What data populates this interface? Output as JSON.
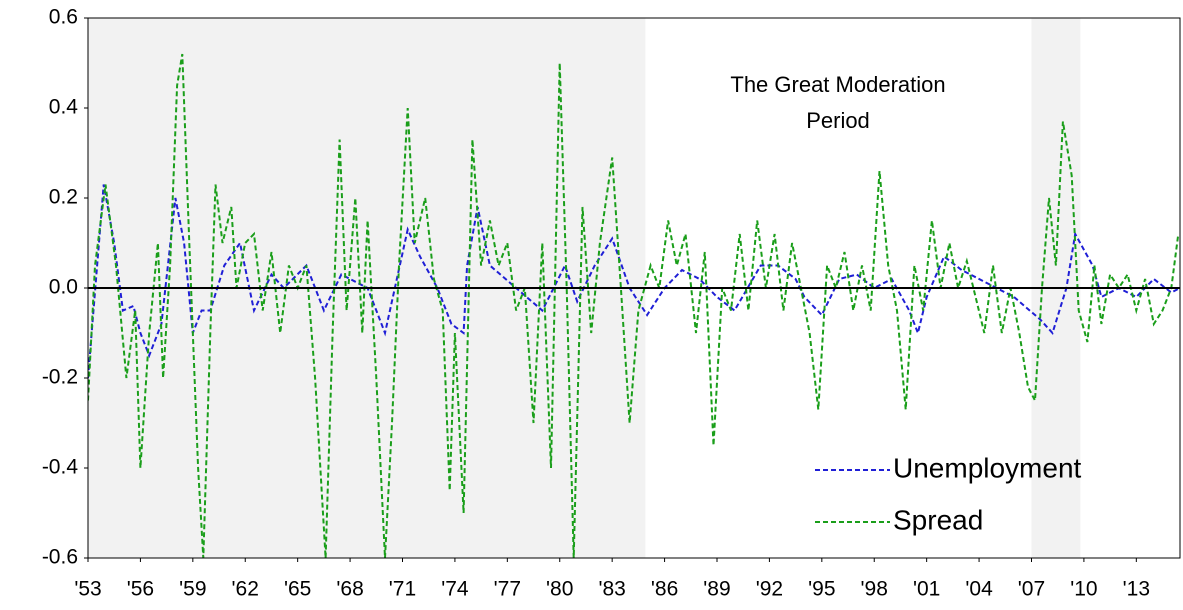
{
  "chart_data": {
    "type": "line",
    "annotation": [
      "The Great Moderation",
      "Period"
    ],
    "shaded": [
      [
        1953,
        1984.9
      ],
      [
        2007,
        2009.8
      ]
    ],
    "shade_color": "#f2f2f2",
    "legend": "lower right",
    "xlim": [
      1953,
      2015.5
    ],
    "ylim": [
      -0.6,
      0.6
    ],
    "yticks": [
      -0.6,
      -0.4,
      -0.2,
      {
        "value": 0,
        "label": "0.0"
      },
      0.2,
      0.4,
      0.6
    ],
    "xticks": [
      {
        "value": 1953,
        "label": "'53"
      },
      {
        "value": 1956,
        "label": "'56"
      },
      {
        "value": 1959,
        "label": "'59"
      },
      {
        "value": 1962,
        "label": "'62"
      },
      {
        "value": 1965,
        "label": "'65"
      },
      {
        "value": 1968,
        "label": "'68"
      },
      {
        "value": 1971,
        "label": "'71"
      },
      {
        "value": 1974,
        "label": "'74"
      },
      {
        "value": 1977,
        "label": "'77"
      },
      {
        "value": 1980,
        "label": "'80"
      },
      {
        "value": 1983,
        "label": "'83"
      },
      {
        "value": 1986,
        "label": "'86"
      },
      {
        "value": 1989,
        "label": "'89"
      },
      {
        "value": 1992,
        "label": "'92"
      },
      {
        "value": 1995,
        "label": "'95"
      },
      {
        "value": 1998,
        "label": "'98"
      },
      {
        "value": 2001,
        "label": "'01"
      },
      {
        "value": 2004,
        "label": "'04"
      },
      {
        "value": 2007,
        "label": "'07"
      },
      {
        "value": 2010,
        "label": "'10"
      },
      {
        "value": 2013,
        "label": "'13"
      }
    ],
    "series": [
      {
        "name": "Unemployment",
        "color": "#1f1fd6",
        "x": [
          1953,
          1953.9,
          1954.5,
          1955,
          1955.6,
          1956,
          1956.5,
          1957.2,
          1958,
          1958.5,
          1959,
          1959.5,
          1960,
          1960.8,
          1961.7,
          1962.5,
          1963.5,
          1964.2,
          1965.5,
          1966.5,
          1967.5,
          1969,
          1970,
          1971.3,
          1972,
          1973,
          1973.8,
          1974.5,
          1974.7,
          1975.3,
          1976,
          1977.5,
          1979,
          1980.3,
          1981,
          1982,
          1983,
          1984,
          1985,
          1986,
          1987,
          1988,
          1989,
          1990,
          1991.5,
          1992.5,
          1993.5,
          1994,
          1995,
          1996,
          1997,
          1998,
          1999,
          2000,
          2000.5,
          2001,
          2002,
          2003,
          2004,
          2005,
          2006,
          2007.5,
          2008.2,
          2009,
          2009.5,
          2010.5,
          2011,
          2012,
          2013,
          2014,
          2015,
          2015.5
        ],
        "values": [
          -0.2,
          0.23,
          0.1,
          -0.05,
          -0.04,
          -0.1,
          -0.15,
          -0.08,
          0.2,
          0.1,
          -0.1,
          -0.05,
          -0.05,
          0.05,
          0.1,
          -0.05,
          0.03,
          0.0,
          0.05,
          -0.05,
          0.03,
          0.0,
          -0.1,
          0.13,
          0.07,
          0.0,
          -0.08,
          -0.1,
          0.05,
          0.18,
          0.05,
          0.0,
          -0.05,
          0.05,
          -0.03,
          0.05,
          0.11,
          0.0,
          -0.06,
          0.0,
          0.04,
          0.02,
          -0.02,
          -0.05,
          0.05,
          0.05,
          0.02,
          -0.02,
          -0.06,
          0.02,
          0.03,
          0.0,
          0.02,
          -0.05,
          -0.1,
          -0.02,
          0.07,
          0.04,
          0.02,
          0.0,
          -0.02,
          -0.07,
          -0.1,
          0.0,
          0.12,
          0.05,
          -0.02,
          0.0,
          -0.02,
          0.02,
          -0.01,
          0.0
        ]
      },
      {
        "name": "Spread",
        "color": "#1a9e1a",
        "x": [
          1953,
          1953.4,
          1954,
          1954.6,
          1955.2,
          1955.7,
          1956,
          1956.5,
          1957,
          1957.3,
          1957.7,
          1958.1,
          1958.4,
          1958.8,
          1959.3,
          1959.6,
          1960,
          1960.3,
          1960.7,
          1961.2,
          1961.5,
          1962,
          1962.5,
          1963,
          1963.5,
          1964,
          1964.5,
          1965,
          1965.5,
          1966,
          1966.6,
          1967,
          1967.4,
          1967.8,
          1968.3,
          1968.7,
          1969,
          1969.5,
          1970,
          1970.4,
          1970.8,
          1971.3,
          1971.7,
          1972.3,
          1972.8,
          1973.3,
          1973.7,
          1974,
          1974.5,
          1975,
          1975.5,
          1976,
          1976.5,
          1977,
          1977.5,
          1978,
          1978.5,
          1979,
          1979.5,
          1980,
          1980.4,
          1980.8,
          1981.3,
          1981.8,
          1982.3,
          1983,
          1983.5,
          1984,
          1984.5,
          1985.2,
          1985.7,
          1986.2,
          1986.7,
          1987.2,
          1987.8,
          1988.3,
          1988.8,
          1989.3,
          1989.8,
          1990.3,
          1990.8,
          1991.3,
          1991.8,
          1992.3,
          1992.8,
          1993.3,
          1993.8,
          1994.3,
          1994.8,
          1995.3,
          1995.8,
          1996.3,
          1996.8,
          1997.3,
          1997.8,
          1998.3,
          1998.8,
          1999.3,
          1999.8,
          2000.3,
          2000.8,
          2001.3,
          2001.8,
          2002.3,
          2002.8,
          2003.3,
          2003.8,
          2004.3,
          2004.8,
          2005.3,
          2005.8,
          2006.3,
          2006.8,
          2007.2,
          2007.6,
          2008,
          2008.4,
          2008.8,
          2009.3,
          2009.7,
          2010.2,
          2010.6,
          2011,
          2011.5,
          2012,
          2012.5,
          2013,
          2013.5,
          2014,
          2014.5,
          2015,
          2015.4
        ],
        "values": [
          -0.25,
          0.05,
          0.23,
          0.05,
          -0.2,
          -0.05,
          -0.4,
          -0.1,
          0.1,
          -0.2,
          0.05,
          0.45,
          0.52,
          0.1,
          -0.4,
          -0.6,
          -0.1,
          0.23,
          0.1,
          0.18,
          0.0,
          0.1,
          0.12,
          -0.05,
          0.08,
          -0.1,
          0.05,
          0.0,
          0.05,
          -0.2,
          -0.6,
          -0.1,
          0.33,
          -0.05,
          0.2,
          -0.1,
          0.15,
          -0.2,
          -0.6,
          -0.3,
          0.05,
          0.4,
          0.1,
          0.2,
          0.02,
          -0.05,
          -0.45,
          -0.1,
          -0.5,
          0.33,
          0.05,
          0.15,
          0.05,
          0.1,
          -0.05,
          0.0,
          -0.3,
          0.1,
          -0.4,
          0.5,
          0.0,
          -0.6,
          0.18,
          -0.1,
          0.1,
          0.29,
          0.0,
          -0.3,
          -0.05,
          0.05,
          0.0,
          0.15,
          0.05,
          0.12,
          -0.1,
          0.08,
          -0.35,
          0.0,
          -0.05,
          0.12,
          -0.05,
          0.15,
          0.0,
          0.12,
          -0.05,
          0.1,
          0.0,
          -0.1,
          -0.27,
          0.05,
          0.0,
          0.08,
          -0.05,
          0.05,
          -0.05,
          0.26,
          0.05,
          -0.05,
          -0.27,
          0.05,
          -0.05,
          0.15,
          0.0,
          0.1,
          0.0,
          0.06,
          -0.02,
          -0.1,
          0.05,
          -0.1,
          0.0,
          -0.1,
          -0.22,
          -0.25,
          0.0,
          0.2,
          0.05,
          0.37,
          0.25,
          -0.05,
          -0.12,
          0.05,
          -0.08,
          0.03,
          0.0,
          0.03,
          -0.05,
          0.02,
          -0.08,
          -0.05,
          0.0,
          0.12
        ]
      }
    ]
  }
}
